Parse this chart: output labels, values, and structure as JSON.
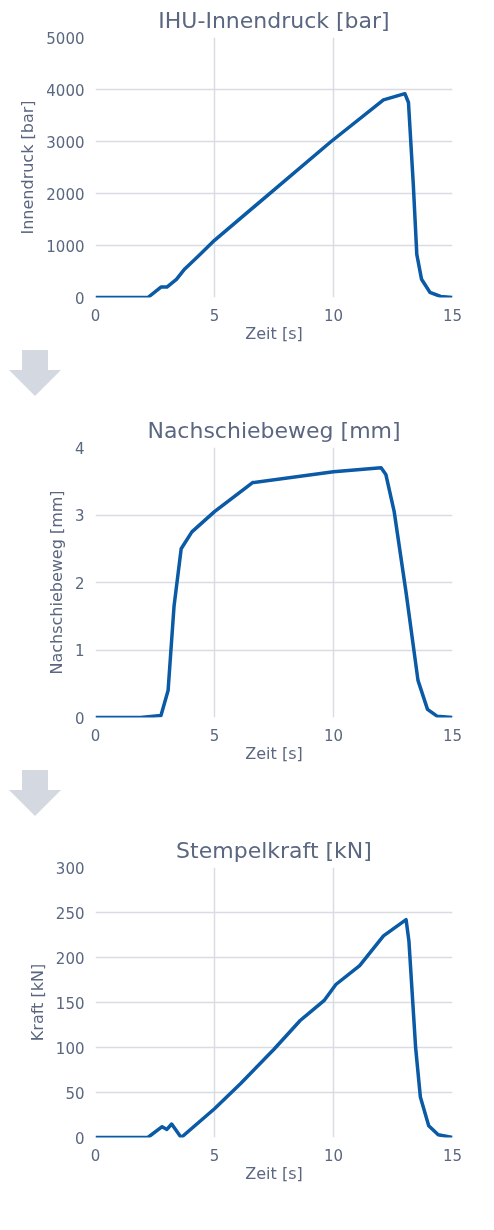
{
  "chart_data": [
    {
      "type": "line",
      "title": "IHU-Innendruck [bar]",
      "xlabel": "Zeit [s]",
      "ylabel": "Innendruck [bar]",
      "xlim": [
        0,
        15
      ],
      "ylim": [
        0,
        5000
      ],
      "xticks": [
        0,
        5,
        10,
        15
      ],
      "yticks": [
        0,
        1000,
        2000,
        3000,
        4000,
        5000
      ],
      "grid": true,
      "series": [
        {
          "color": "#0a5aa6",
          "x": [
            0,
            2.2,
            2.75,
            3.0,
            3.4,
            3.75,
            4.4,
            5.0,
            9.9,
            12.1,
            13.0,
            13.15,
            13.35,
            13.5,
            13.7,
            14.05,
            14.5,
            15
          ],
          "values": [
            0,
            0,
            200,
            200,
            350,
            550,
            830,
            1100,
            3000,
            3800,
            3920,
            3750,
            2200,
            830,
            350,
            100,
            20,
            0
          ]
        }
      ]
    },
    {
      "type": "line",
      "title": "Nachschiebeweg [mm]",
      "xlabel": "Zeit [s]",
      "ylabel": "Nachschiebeweg [mm]",
      "xlim": [
        0,
        15
      ],
      "ylim": [
        0,
        4
      ],
      "xticks": [
        0,
        5,
        10,
        15
      ],
      "yticks": [
        0,
        1,
        2,
        3,
        4
      ],
      "grid": true,
      "series": [
        {
          "color": "#0a5aa6",
          "x": [
            0,
            1.9,
            2.75,
            3.05,
            3.3,
            3.6,
            4.05,
            5.0,
            6.6,
            10.0,
            12.0,
            12.2,
            12.55,
            13.05,
            13.55,
            13.95,
            14.35,
            15
          ],
          "values": [
            0,
            0,
            0.03,
            0.4,
            1.65,
            2.5,
            2.75,
            3.05,
            3.48,
            3.64,
            3.7,
            3.6,
            3.05,
            1.85,
            0.55,
            0.12,
            0.02,
            0
          ]
        }
      ]
    },
    {
      "type": "line",
      "title": "Stempelkraft [kN]",
      "xlabel": "Zeit [s]",
      "ylabel": "Kraft [kN]",
      "xlim": [
        0,
        15
      ],
      "ylim": [
        0,
        300
      ],
      "xticks": [
        0,
        5,
        10,
        15
      ],
      "yticks": [
        0,
        50,
        100,
        150,
        200,
        250,
        300
      ],
      "grid": true,
      "series": [
        {
          "color": "#0a5aa6",
          "x": [
            0,
            2.2,
            2.8,
            3.0,
            3.2,
            3.6,
            5.0,
            6.1,
            7.5,
            8.6,
            9.6,
            10.1,
            11.1,
            12.1,
            13.05,
            13.17,
            13.45,
            13.65,
            14.0,
            14.4,
            15
          ],
          "values": [
            0,
            0,
            12,
            9,
            15,
            0,
            32,
            60,
            98,
            130,
            152,
            170,
            191,
            224,
            242,
            218,
            100,
            45,
            13,
            3,
            0
          ]
        }
      ]
    }
  ]
}
